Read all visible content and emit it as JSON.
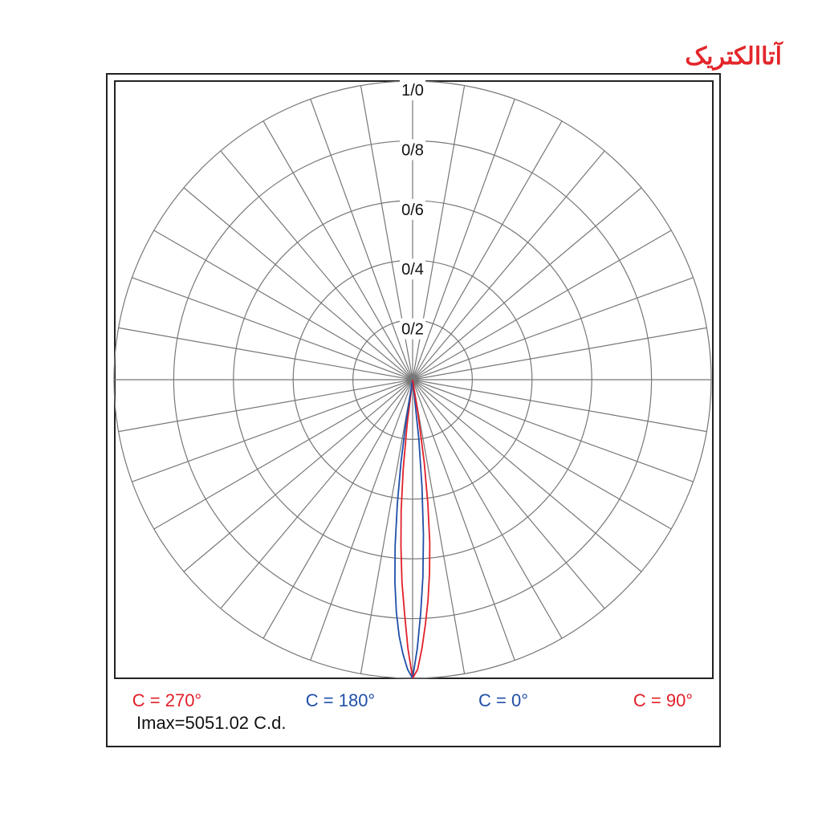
{
  "logo": "آتاالکتریک",
  "chart_data": {
    "type": "polar",
    "note": "Imax=5051.02 C.d.",
    "ylim": [
      0,
      1
    ],
    "yticks": [
      {
        "value": 0.2,
        "label": "0/2"
      },
      {
        "value": 0.4,
        "label": "0/4"
      },
      {
        "value": 0.6,
        "label": "0/6"
      },
      {
        "value": 0.8,
        "label": "0/8"
      },
      {
        "value": 1.0,
        "label": "1/0"
      }
    ],
    "grid": true,
    "series": [
      {
        "name": "C = 270°",
        "color": "#e0202a",
        "x": [
          0,
          -1,
          -2,
          -3,
          -4,
          -5,
          -6,
          -7,
          -8
        ],
        "values": [
          1.0,
          0.9,
          0.78,
          0.68,
          0.56,
          0.44,
          0.3,
          0.15,
          0
        ]
      },
      {
        "name": "C = 180°",
        "color": "#1f4fa8",
        "x": [
          0,
          -1,
          -2,
          -3,
          -4,
          -5,
          -6,
          -7,
          -8,
          -9,
          -10
        ],
        "values": [
          1.0,
          0.97,
          0.92,
          0.86,
          0.78,
          0.68,
          0.56,
          0.42,
          0.28,
          0.14,
          0
        ]
      },
      {
        "name": "C = 0°",
        "color": "#1f4fa8",
        "x": [
          0,
          1,
          2,
          3,
          4,
          5,
          6,
          7
        ],
        "values": [
          1.0,
          0.9,
          0.78,
          0.66,
          0.52,
          0.36,
          0.2,
          0
        ]
      },
      {
        "name": "C = 90°",
        "color": "#e0202a",
        "x": [
          0,
          1,
          2,
          3,
          4,
          5,
          6,
          7,
          8,
          9,
          10
        ],
        "values": [
          1.0,
          0.97,
          0.9,
          0.82,
          0.74,
          0.65,
          0.55,
          0.42,
          0.28,
          0.12,
          0
        ]
      }
    ]
  }
}
